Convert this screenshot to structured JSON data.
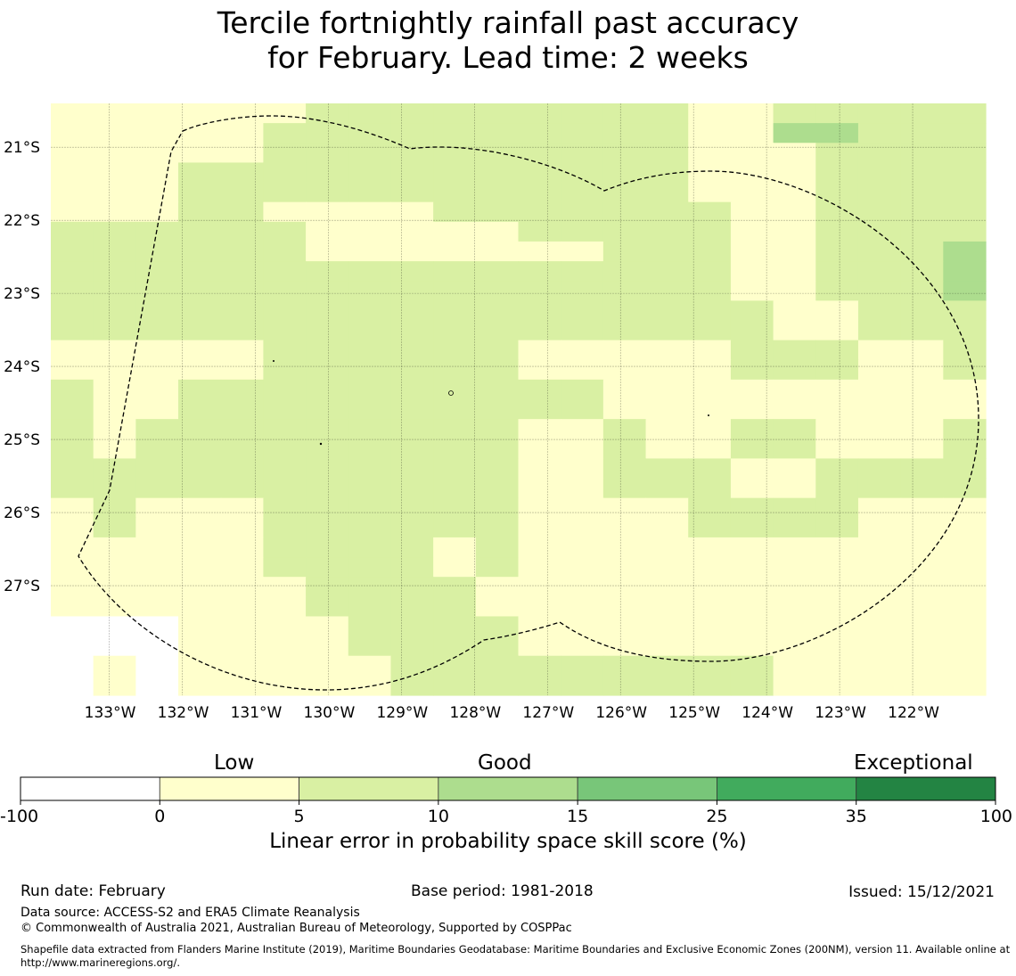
{
  "title": {
    "line1": "Tercile fortnightly rainfall past accuracy",
    "line2": "for February. Lead time: 2 weeks"
  },
  "map": {
    "lon_range": [
      -133.8,
      -121.0
    ],
    "lat_range": [
      -20.4,
      -28.5
    ],
    "lon_ticks": [
      "133°W",
      "132°W",
      "131°W",
      "130°W",
      "129°W",
      "128°W",
      "127°W",
      "126°W",
      "125°W",
      "124°W",
      "123°W",
      "122°W"
    ],
    "lat_ticks": [
      "21°S",
      "22°S",
      "23°S",
      "24°S",
      "25°S",
      "26°S",
      "27°S"
    ],
    "grid_lons": [
      -133,
      -132,
      -131,
      -130,
      -129,
      -128,
      -127,
      -126,
      -125,
      -124,
      -123,
      -122
    ],
    "grid_lats": [
      -21,
      -22,
      -23,
      -24,
      -25,
      -26,
      -27
    ],
    "category_colors": {
      "0": "#ffffff",
      "1": "#ffffcc",
      "2": "#d9f0a3",
      "3": "#addd8e"
    },
    "cell_rows": [
      "1111112222222221122222",
      "1111122222222221133222",
      "1111122222222221112222",
      "1112222222222221112222",
      "1112222222222221112222",
      "1112211112222222112222",
      "2222221111122222112222",
      "2222221111111222112223",
      "2222222222222222112223",
      "2222222222222222112223",
      "2222222222222222211222",
      "2222222222222222211222",
      "1111122222211111222112",
      "1111122222211111222112",
      "2112222222222111111111",
      "2112222222222111111111",
      "2122222222211211221112",
      "2122222222211211221112",
      "2222222222211222112222",
      "2222222222211222112222",
      "1211122222211112222111",
      "1211122222211112222111",
      "1111122221211111111111",
      "1111122221211111111111",
      "1111112222111111111111",
      "1111112222111111111111",
      "0001111222211111111111",
      "0001111222211111111111",
      "0101111122222222211111",
      "0101111122222222211111"
    ]
  },
  "colorbar": {
    "words": [
      "Low",
      "Good",
      "Exceptional"
    ],
    "ticks": [
      "-100",
      "0",
      "5",
      "10",
      "15",
      "25",
      "35",
      "100"
    ],
    "colors": [
      "#ffffff",
      "#ffffcc",
      "#d9f0a3",
      "#addd8e",
      "#78c679",
      "#41ab5d",
      "#238443"
    ],
    "title": "Linear error in probability space skill score (%)"
  },
  "footer": {
    "run_date": "Run date: February",
    "base_period": "Base period: 1981-2018",
    "issued": "Issued: 15/12/2021",
    "data_source": "Data source: ACCESS-S2 and ERA5 Climate Reanalysis",
    "copyright": "© Commonwealth of Australia 2021, Australian Bureau of Meteorology, Supported by COSPPac",
    "shapefile": "Shapefile data extracted from Flanders Marine Institute (2019), Maritime Boundaries Geodatabase: Maritime Boundaries and Exclusive Economic Zones (200NM), version 11. Available online at http://www.marineregions.org/."
  }
}
